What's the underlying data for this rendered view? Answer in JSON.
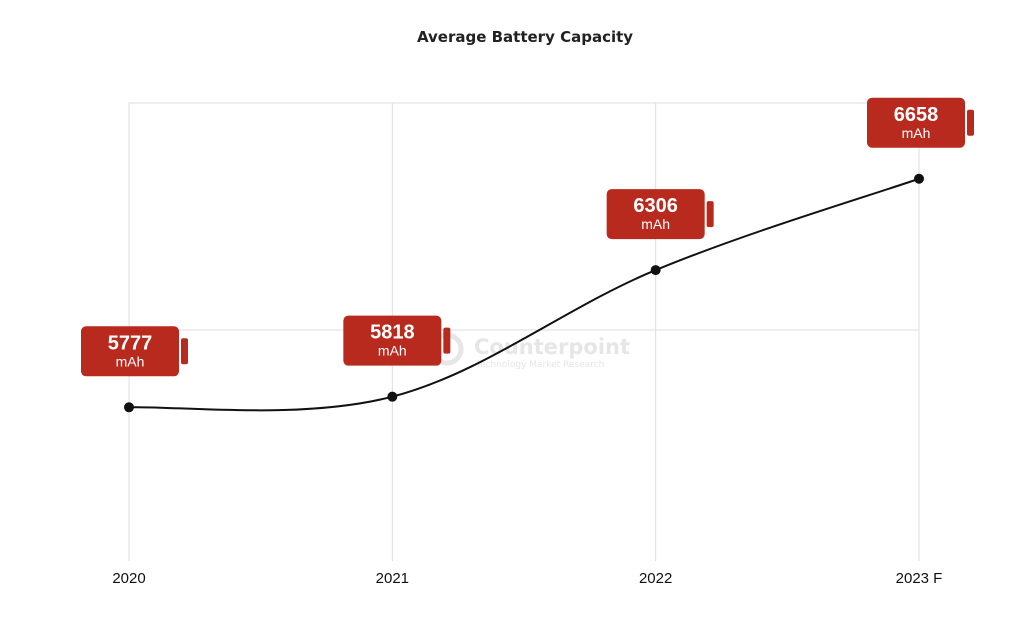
{
  "chart_data": {
    "type": "line",
    "title": "Average Battery Capacity",
    "categories": [
      "2020",
      "2021",
      "2022",
      "2023 F"
    ],
    "series": [
      {
        "name": "Average Battery Capacity",
        "values": [
          5777,
          5818,
          6306,
          6658
        ]
      }
    ],
    "unit": "mAh",
    "xlabel": "",
    "ylabel": "",
    "ylim": [
      5200,
      6950
    ],
    "grid": true,
    "colors": {
      "line": "#111111",
      "badge": "#b92a1e",
      "grid": "#dddddd"
    }
  },
  "watermark": {
    "name": "Counterpoint",
    "tagline": "Technology Market Research"
  }
}
